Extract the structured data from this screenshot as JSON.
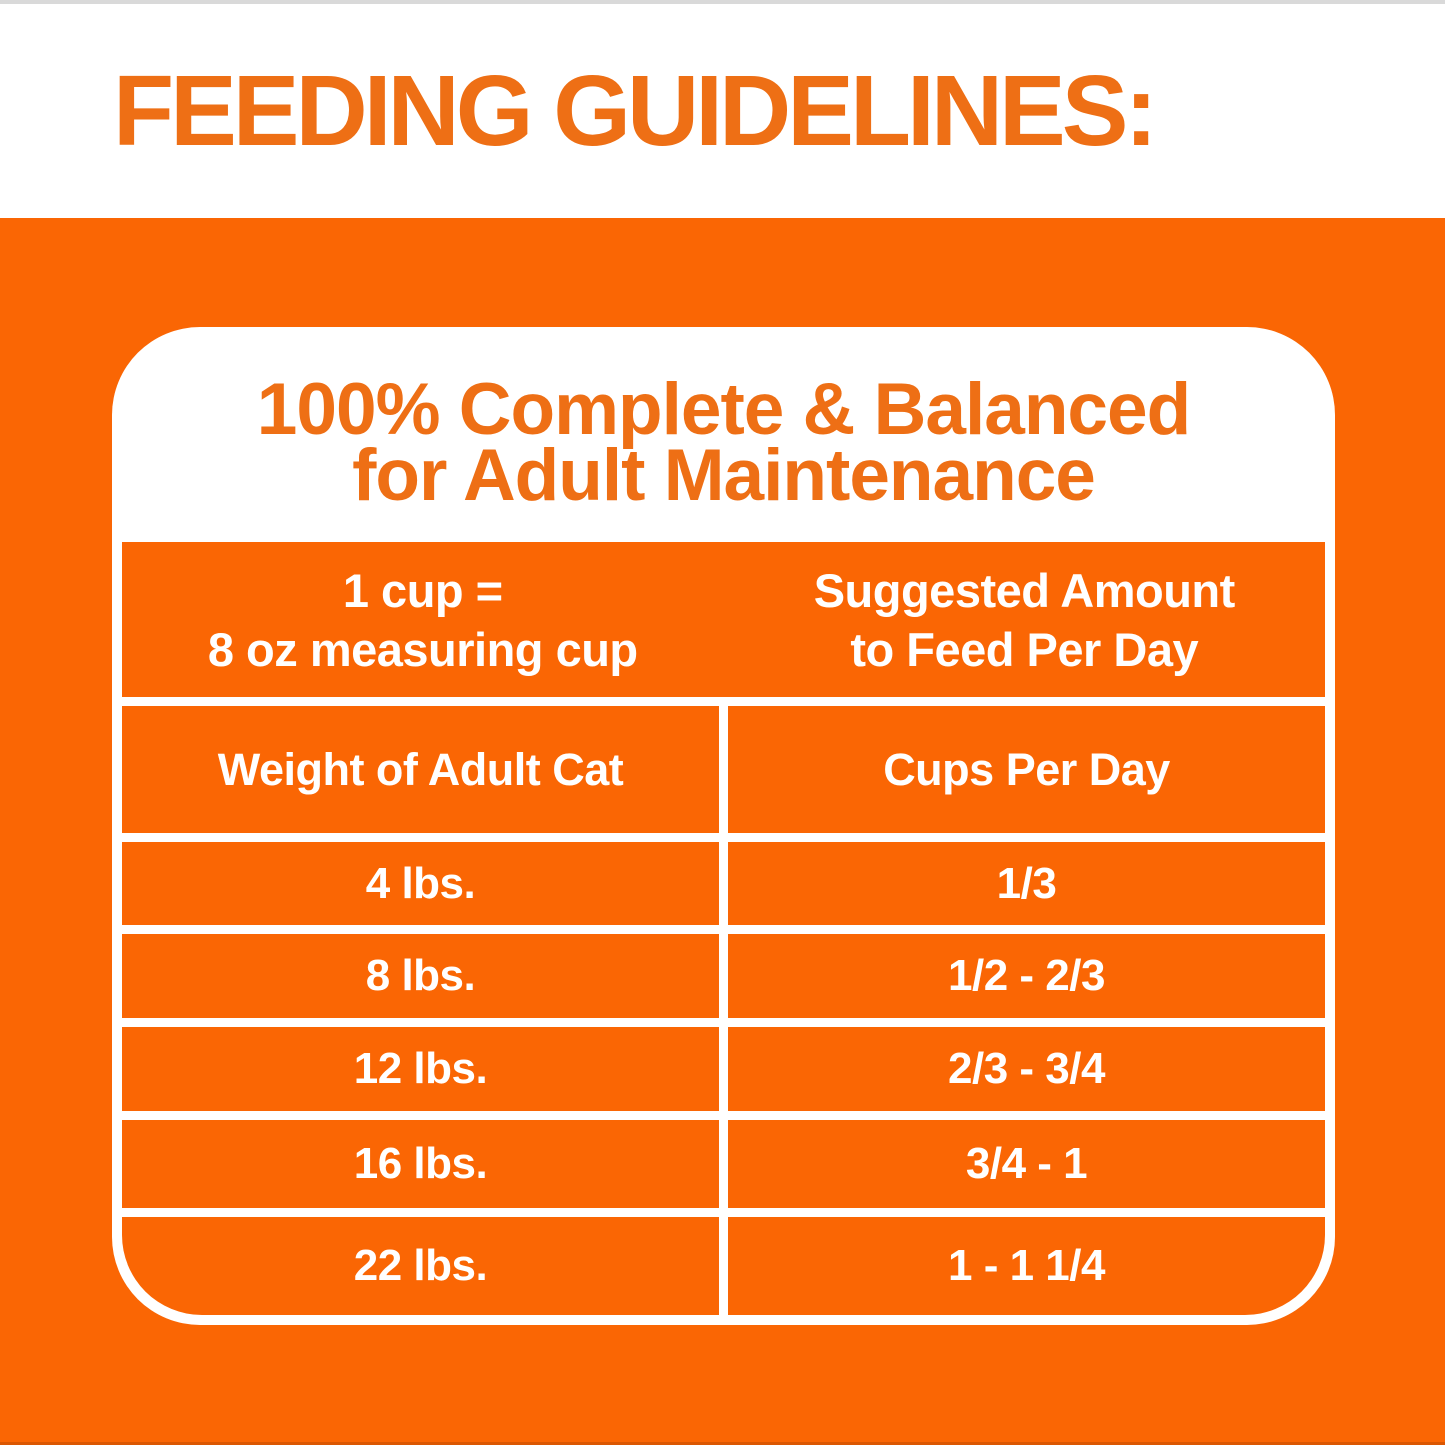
{
  "header": {
    "title": "FEEDING GUIDELINES:"
  },
  "card": {
    "heading_line1": "100% Complete & Balanced",
    "heading_line2": "for Adult Maintenance",
    "table": {
      "unit_row": {
        "left_line1": "1 cup =",
        "left_line2": "8 oz measuring cup",
        "right_line1": "Suggested Amount",
        "right_line2": "to Feed Per Day"
      },
      "column_headers": [
        "Weight of Adult Cat",
        "Cups Per Day"
      ],
      "rows": [
        {
          "weight": "4 lbs.",
          "cups": "1/3"
        },
        {
          "weight": "8 lbs.",
          "cups": "1/2 - 2/3"
        },
        {
          "weight": "12 lbs.",
          "cups": "2/3 - 3/4"
        },
        {
          "weight": "16 lbs.",
          "cups": "3/4 - 1"
        },
        {
          "weight": "22 lbs.",
          "cups": "1 - 1 1/4"
        }
      ]
    }
  },
  "colors": {
    "background_orange": "#FA6604",
    "accent_text_orange": "#EE6F15",
    "table_text_white": "#FFFFFF"
  },
  "chart_data": {
    "type": "table",
    "title": "FEEDING GUIDELINES:",
    "subtitle": "100% Complete & Balanced for Adult Maintenance",
    "note": "1 cup = 8 oz measuring cup",
    "value_note": "Suggested Amount to Feed Per Day",
    "columns": [
      "Weight of Adult Cat",
      "Cups Per Day"
    ],
    "rows": [
      [
        "4 lbs.",
        "1/3"
      ],
      [
        "8 lbs.",
        "1/2 - 2/3"
      ],
      [
        "12 lbs.",
        "2/3 - 3/4"
      ],
      [
        "16 lbs.",
        "3/4 - 1"
      ],
      [
        "22 lbs.",
        "1 - 1 1/4"
      ]
    ]
  }
}
